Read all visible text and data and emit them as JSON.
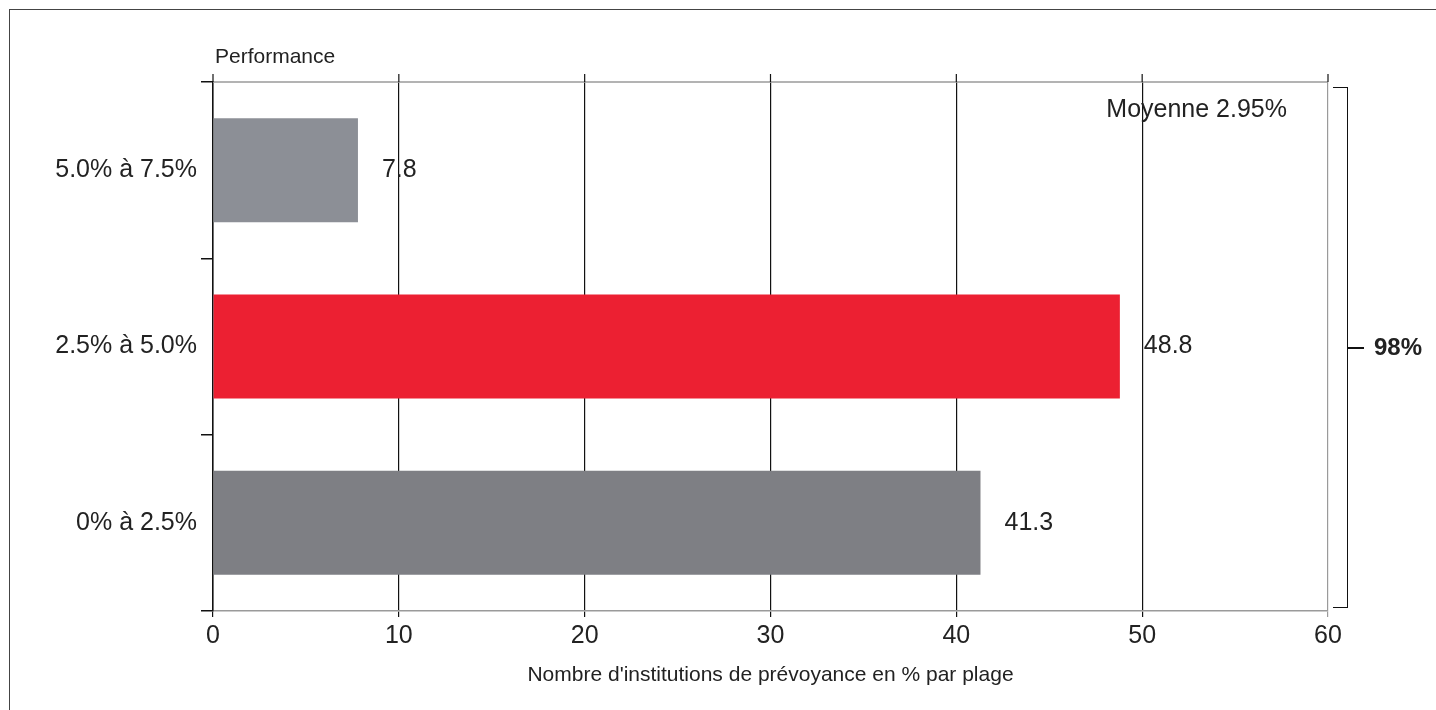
{
  "chart_data": {
    "type": "bar",
    "orientation": "horizontal",
    "ylabel": "Performance",
    "xlabel": "Nombre d'institutions de prévoyance en % par plage",
    "categories": [
      "5.0% à 7.5%",
      "2.5% à 5.0%",
      "0% à 2.5%"
    ],
    "values": [
      7.8,
      48.8,
      41.3
    ],
    "colors": [
      "#8c8f96",
      "#ec2032",
      "#7e7f84"
    ],
    "xlim": [
      0,
      60
    ],
    "xticks": [
      0,
      10,
      20,
      30,
      40,
      50,
      60
    ],
    "grid": "x",
    "data_labels": true,
    "annotations": [
      "Moyenne 2.95%",
      "98%"
    ]
  }
}
